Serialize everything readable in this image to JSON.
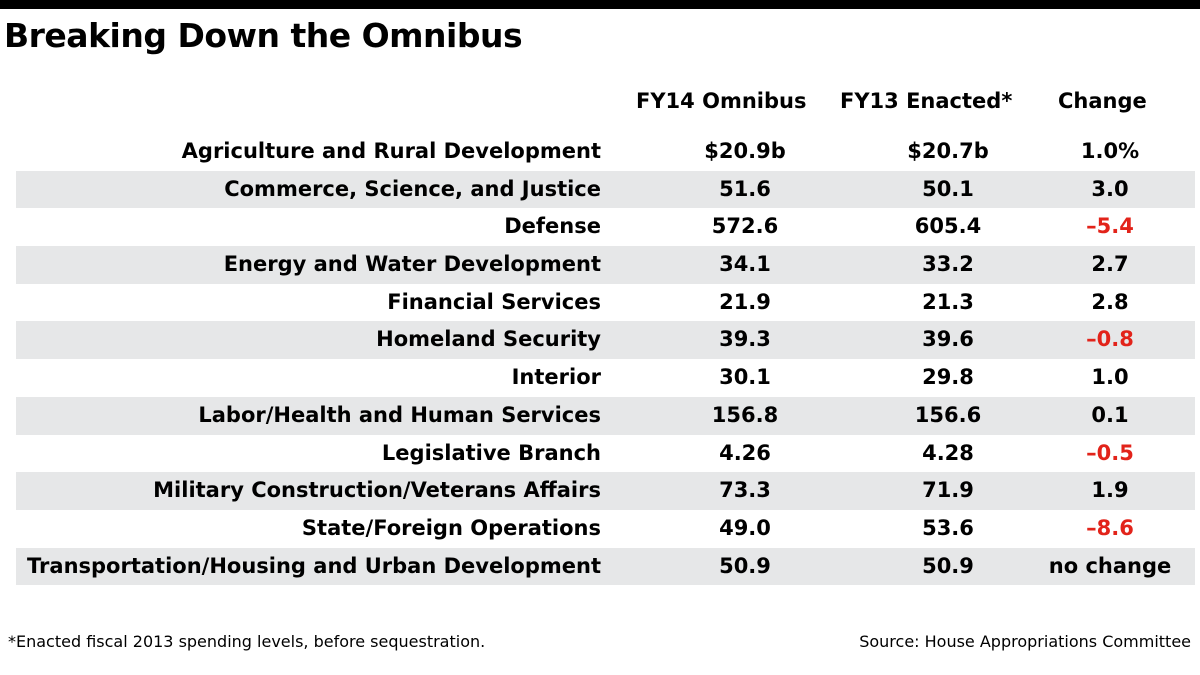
{
  "title": "Breaking Down the Omnibus",
  "footnote": "*Enacted fiscal 2013 spending levels, before sequestration.",
  "source": "Source: House Appropriations Committee",
  "colors": {
    "negative": "#e2231a",
    "row_shade": "#e6e7e8",
    "rule": "#000000"
  },
  "chart_data": {
    "type": "table",
    "title": "Breaking Down the Omnibus",
    "columns": [
      "",
      "FY14 Omnibus",
      "FY13 Enacted*",
      "Change"
    ],
    "rows": [
      {
        "label": "Agriculture and Rural Development",
        "fy14": "$20.9b",
        "fy13": "$20.7b",
        "change": "1.0%",
        "negative": false
      },
      {
        "label": "Commerce, Science, and Justice",
        "fy14": "51.6",
        "fy13": "50.1",
        "change": "3.0",
        "negative": false
      },
      {
        "label": "Defense",
        "fy14": "572.6",
        "fy13": "605.4",
        "change": "–5.4",
        "negative": true
      },
      {
        "label": "Energy and Water Development",
        "fy14": "34.1",
        "fy13": "33.2",
        "change": "2.7",
        "negative": false
      },
      {
        "label": "Financial Services",
        "fy14": "21.9",
        "fy13": "21.3",
        "change": "2.8",
        "negative": false
      },
      {
        "label": "Homeland Security",
        "fy14": "39.3",
        "fy13": "39.6",
        "change": "–0.8",
        "negative": true
      },
      {
        "label": "Interior",
        "fy14": "30.1",
        "fy13": "29.8",
        "change": "1.0",
        "negative": false
      },
      {
        "label": "Labor/Health and Human Services",
        "fy14": "156.8",
        "fy13": "156.6",
        "change": "0.1",
        "negative": false
      },
      {
        "label": "Legislative Branch",
        "fy14": "4.26",
        "fy13": "4.28",
        "change": "–0.5",
        "negative": true
      },
      {
        "label": "Military Construction/Veterans Affairs",
        "fy14": "73.3",
        "fy13": "71.9",
        "change": "1.9",
        "negative": false
      },
      {
        "label": "State/Foreign Operations",
        "fy14": "49.0",
        "fy13": "53.6",
        "change": "–8.6",
        "negative": true
      },
      {
        "label": "Transportation/Housing and Urban Development",
        "fy14": "50.9",
        "fy13": "50.9",
        "change": "no change",
        "negative": false
      }
    ]
  }
}
